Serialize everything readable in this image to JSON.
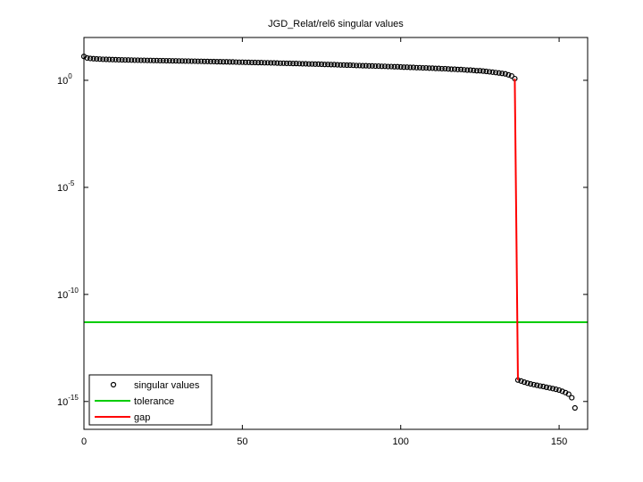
{
  "chart_data": {
    "type": "scatter",
    "title": "JGD_Relat/rel6 singular values",
    "xlim": [
      0,
      159
    ],
    "ylim": [
      5e-17,
      100
    ],
    "log_y": true,
    "xticks": [
      0,
      50,
      100,
      150
    ],
    "yticks": [
      {
        "value": 1,
        "label": "10",
        "exponent": "0"
      },
      {
        "value": 1e-05,
        "label": "10",
        "exponent": "-5"
      },
      {
        "value": 1e-10,
        "label": "10",
        "exponent": "-10"
      },
      {
        "value": 1e-15,
        "label": "10",
        "exponent": "-15"
      }
    ],
    "legend": "lower left",
    "series": [
      {
        "name": "singular values",
        "type": "scatter",
        "color": "#000000",
        "x": [
          0,
          1,
          2,
          3,
          4,
          5,
          6,
          7,
          8,
          9,
          10,
          11,
          12,
          13,
          14,
          15,
          16,
          17,
          18,
          19,
          20,
          21,
          22,
          23,
          24,
          25,
          26,
          27,
          28,
          29,
          30,
          31,
          32,
          33,
          34,
          35,
          36,
          37,
          38,
          39,
          40,
          41,
          42,
          43,
          44,
          45,
          46,
          47,
          48,
          49,
          50,
          51,
          52,
          53,
          54,
          55,
          56,
          57,
          58,
          59,
          60,
          61,
          62,
          63,
          64,
          65,
          66,
          67,
          68,
          69,
          70,
          71,
          72,
          73,
          74,
          75,
          76,
          77,
          78,
          79,
          80,
          81,
          82,
          83,
          84,
          85,
          86,
          87,
          88,
          89,
          90,
          91,
          92,
          93,
          94,
          95,
          96,
          97,
          98,
          99,
          100,
          101,
          102,
          103,
          104,
          105,
          106,
          107,
          108,
          109,
          110,
          111,
          112,
          113,
          114,
          115,
          116,
          117,
          118,
          119,
          120,
          121,
          122,
          123,
          124,
          125,
          126,
          127,
          128,
          129,
          130,
          131,
          132,
          133,
          134,
          135,
          136,
          137,
          138,
          139,
          140,
          141,
          142,
          143,
          144,
          145,
          146,
          147,
          148,
          149,
          150,
          151,
          152,
          153,
          154,
          155
        ],
        "values": [
          13,
          11,
          10.5,
          10.2,
          10,
          9.8,
          9.6,
          9.5,
          9.4,
          9.3,
          9.2,
          9.1,
          9.0,
          8.9,
          8.9,
          8.8,
          8.7,
          8.7,
          8.6,
          8.6,
          8.5,
          8.5,
          8.4,
          8.4,
          8.3,
          8.3,
          8.2,
          8.2,
          8.1,
          8.1,
          8.0,
          8.0,
          7.9,
          7.9,
          7.8,
          7.8,
          7.7,
          7.7,
          7.6,
          7.6,
          7.5,
          7.5,
          7.4,
          7.4,
          7.3,
          7.3,
          7.2,
          7.2,
          7.1,
          7.0,
          7.0,
          6.9,
          6.9,
          6.8,
          6.8,
          6.7,
          6.7,
          6.6,
          6.6,
          6.5,
          6.5,
          6.4,
          6.3,
          6.3,
          6.2,
          6.2,
          6.1,
          6.1,
          6.0,
          5.9,
          5.9,
          5.8,
          5.8,
          5.7,
          5.7,
          5.6,
          5.5,
          5.5,
          5.4,
          5.4,
          5.3,
          5.2,
          5.2,
          5.1,
          5.1,
          5.0,
          4.9,
          4.9,
          4.8,
          4.8,
          4.7,
          4.7,
          4.6,
          4.6,
          4.5,
          4.5,
          4.4,
          4.4,
          4.3,
          4.3,
          4.2,
          4.1,
          4.1,
          4.0,
          4.0,
          3.9,
          3.9,
          3.8,
          3.8,
          3.7,
          3.7,
          3.6,
          3.6,
          3.5,
          3.5,
          3.4,
          3.3,
          3.3,
          3.2,
          3.2,
          3.1,
          3.0,
          3.0,
          2.9,
          2.8,
          2.8,
          2.7,
          2.6,
          2.5,
          2.4,
          2.3,
          2.2,
          2.1,
          2.0,
          1.8,
          1.6,
          1.2,
          1e-14,
          9e-15,
          8e-15,
          7.2e-15,
          6.6e-15,
          6.1e-15,
          5.7e-15,
          5.3e-15,
          5e-15,
          4.6e-15,
          4.3e-15,
          4e-15,
          3.7e-15,
          3.4e-15,
          3e-15,
          2.6e-15,
          2.2e-15,
          1.5e-15,
          5e-16
        ]
      },
      {
        "name": "tolerance",
        "type": "hline",
        "color": "#00cc00",
        "value": 5e-12
      },
      {
        "name": "gap",
        "type": "line",
        "color": "#ff0000",
        "x": [
          136,
          137
        ],
        "values": [
          1.2,
          1e-14
        ]
      }
    ]
  }
}
